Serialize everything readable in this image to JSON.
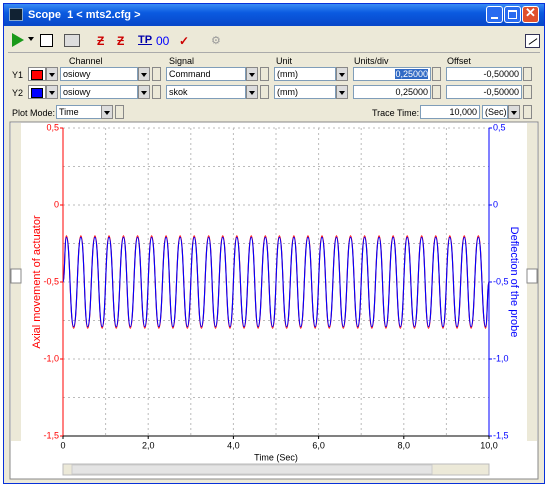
{
  "window": {
    "title": "Scope  1 < mts2.cfg >"
  },
  "toolbar": {
    "icon_label": "00"
  },
  "channels": {
    "headers": [
      "Channel",
      "Signal",
      "Unit",
      "Units/div",
      "Offset"
    ],
    "rows": [
      {
        "label": "Y1",
        "color": "#ff0000",
        "channel": "osiowy",
        "signal": "Command",
        "unit": "(mm)",
        "units_per_div": "0,25000",
        "offset": "-0,50000"
      },
      {
        "label": "Y2",
        "color": "#0000ff",
        "channel": "osiowy",
        "signal": "skok",
        "unit": "(mm)",
        "units_per_div": "0,25000",
        "offset": "-0,50000"
      }
    ]
  },
  "plot_mode": {
    "label": "Plot Mode:",
    "value": "Time",
    "trace_label": "Trace Time:",
    "trace_value": "10,000",
    "trace_unit": "(Sec)"
  },
  "chart_data": {
    "type": "line",
    "xlabel": "Time (Sec)",
    "ylabel": "Axial movement of actuator",
    "y2label": "Deflection of the probe",
    "grid": true,
    "xlim": [
      0,
      10
    ],
    "xticks": [
      0,
      {
        "value": 2,
        "label": "2,0"
      },
      {
        "value": 4,
        "label": "4,0"
      },
      {
        "value": 6,
        "label": "6,0"
      },
      {
        "value": 8,
        "label": "8,0"
      },
      {
        "value": 10,
        "label": "10,0"
      }
    ],
    "xminorticks": [
      1,
      3,
      5,
      7,
      9
    ],
    "ylim": [
      -1.5,
      0.5
    ],
    "yticks": [
      {
        "value": 0.5,
        "label": "0,5"
      },
      0,
      {
        "value": -0.5,
        "label": "-0,5"
      },
      {
        "value": -1,
        "label": "-1,0"
      },
      {
        "value": -1.5,
        "label": "-1,5"
      }
    ],
    "y2lim": [
      -1.5,
      0.5
    ],
    "y2ticks": [
      {
        "value": 0.5,
        "label": "0,5"
      },
      0,
      {
        "value": -0.5,
        "label": "-0,5"
      },
      {
        "value": -1,
        "label": "-1,0"
      },
      {
        "value": -1.5,
        "label": "-1,5"
      }
    ],
    "yminorticks": [
      0.25,
      -0.25,
      -0.75,
      -1.25
    ],
    "x": [
      0,
      0.08,
      0.25,
      0.42,
      0.58,
      0.75,
      0.92,
      1.08,
      1.25,
      1.42,
      1.58,
      1.75,
      1.92,
      2.08,
      2.25,
      2.42,
      2.58,
      2.75,
      2.92,
      3.08,
      3.25,
      3.42,
      3.58,
      3.75,
      3.92,
      4.08,
      4.25,
      4.42,
      4.58,
      4.75,
      4.92,
      5.08,
      5.25,
      5.42,
      5.58,
      5.75,
      5.92,
      6.08,
      6.25,
      6.42,
      6.58,
      6.75,
      6.92,
      7.08,
      7.25,
      7.42,
      7.58,
      7.75,
      7.92,
      8.08,
      8.25,
      8.42,
      8.58,
      8.75,
      8.92,
      9.08,
      9.25,
      9.42,
      9.58,
      9.75,
      9.92,
      10
    ],
    "series": [
      {
        "color": "#ff0000",
        "values": [
          -0.5,
          -0.2,
          -0.8,
          -0.2,
          -0.8,
          -0.2,
          -0.8,
          -0.2,
          -0.8,
          -0.2,
          -0.8,
          -0.2,
          -0.8,
          -0.2,
          -0.8,
          -0.2,
          -0.8,
          -0.2,
          -0.8,
          -0.2,
          -0.8,
          -0.2,
          -0.8,
          -0.2,
          -0.8,
          -0.2,
          -0.8,
          -0.2,
          -0.8,
          -0.2,
          -0.8,
          -0.2,
          -0.8,
          -0.2,
          -0.8,
          -0.2,
          -0.8,
          -0.2,
          -0.8,
          -0.2,
          -0.8,
          -0.2,
          -0.8,
          -0.2,
          -0.8,
          -0.2,
          -0.8,
          -0.2,
          -0.8,
          -0.2,
          -0.8,
          -0.2,
          -0.8,
          -0.2,
          -0.8,
          -0.2,
          -0.8,
          -0.2,
          -0.8,
          -0.2,
          -0.8,
          -0.5
        ]
      },
      {
        "color": "#0000ff",
        "axis": "y2",
        "values": [
          -0.5,
          -0.21,
          -0.79,
          -0.21,
          -0.79,
          -0.21,
          -0.79,
          -0.21,
          -0.79,
          -0.21,
          -0.79,
          -0.21,
          -0.79,
          -0.21,
          -0.79,
          -0.21,
          -0.79,
          -0.21,
          -0.79,
          -0.21,
          -0.79,
          -0.21,
          -0.79,
          -0.21,
          -0.79,
          -0.21,
          -0.79,
          -0.21,
          -0.79,
          -0.21,
          -0.79,
          -0.21,
          -0.79,
          -0.21,
          -0.79,
          -0.21,
          -0.79,
          -0.21,
          -0.79,
          -0.21,
          -0.79,
          -0.21,
          -0.79,
          -0.21,
          -0.79,
          -0.21,
          -0.79,
          -0.21,
          -0.79,
          -0.21,
          -0.79,
          -0.21,
          -0.79,
          -0.21,
          -0.79,
          -0.21,
          -0.79,
          -0.21,
          -0.79,
          -0.21,
          -0.79,
          -0.5
        ]
      }
    ]
  }
}
